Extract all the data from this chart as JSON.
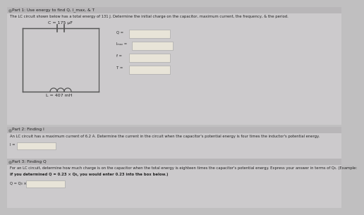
{
  "bg_color": "#c0bfc0",
  "section1_bg": "#cccacc",
  "header_bg": "#b8b6b8",
  "part1_header": "Part 1: Use energy to find Q, I_max, & T",
  "part1_desc": "The LC circuit shown below has a total energy of 131 J. Determine the initial charge on the capacitor, maximum current, the frequency, & the period.",
  "C_label": "C = 175 μF",
  "L_label": "L = 407 mH",
  "input_labels": [
    "Q =",
    "Iₘₐₓ =",
    "f =",
    "T ="
  ],
  "part2_header": "Part 2: Finding I",
  "part2_desc": "An LC circuit has a maximum current of 6.2 A. Determine the current in the circuit when the capacitor's potential energy is four times the inductor's potential energy.",
  "part2_input": "I =",
  "part3_header": "Part 3: Finding Q",
  "part3_desc1": "For an LC circuit, determine how much charge is on the capacitor when the total energy is eighteen times the capacitor's potential energy. Express your answer in terms of Q₀. (Example:",
  "part3_desc2": "if you determined Q = 0.23 × Q₀, you would enter 0.23 into the box below.)",
  "part3_input": "Q = Q₀ ×",
  "input_box_fill": "#e8e4d8",
  "input_box_edge": "#aaaaaa",
  "circuit_line_color": "#555555",
  "text_dark": "#222222",
  "text_mid": "#333333",
  "checkbox_color": "#888888"
}
